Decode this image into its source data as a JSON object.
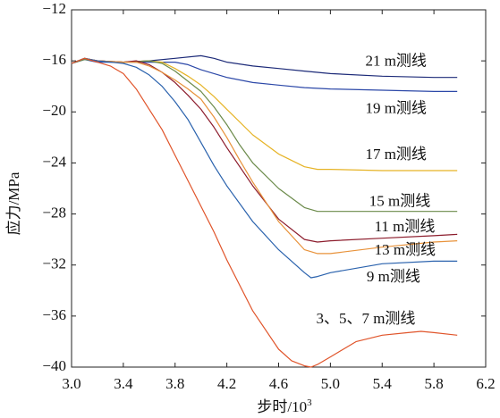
{
  "chart_data": {
    "type": "line",
    "title": "",
    "xlabel": "步时/10",
    "xlabel_sup": "3",
    "ylabel": "应力/MPa",
    "xlim": [
      3.0,
      6.2
    ],
    "ylim": [
      -40,
      -12
    ],
    "xticks": [
      3.0,
      3.4,
      3.8,
      4.2,
      4.6,
      5.0,
      5.4,
      5.8,
      6.2
    ],
    "xtick_labels": [
      "3.0",
      "3.4",
      "3.8",
      "4.2",
      "4.6",
      "5.0",
      "5.4",
      "5.8",
      "6.2"
    ],
    "yticks": [
      -12,
      -16,
      -20,
      -24,
      -28,
      -32,
      -36,
      -40
    ],
    "ytick_labels": [
      "−12",
      "−16",
      "−20",
      "−24",
      "−28",
      "−32",
      "−36",
      "−40"
    ],
    "grid": false,
    "series": [
      {
        "name": "21 m测线",
        "color": "#1c2a78",
        "x": [
          3.0,
          3.1,
          3.2,
          3.4,
          3.6,
          3.8,
          4.0,
          4.1,
          4.2,
          4.4,
          4.6,
          4.8,
          5.0,
          5.4,
          5.8,
          5.98
        ],
        "y": [
          -16.2,
          -15.8,
          -16.0,
          -16.1,
          -16.0,
          -15.8,
          -15.6,
          -15.8,
          -16.1,
          -16.4,
          -16.6,
          -16.8,
          -17.0,
          -17.2,
          -17.3,
          -17.3
        ]
      },
      {
        "name": "19 m测线",
        "color": "#2c48a8",
        "x": [
          3.0,
          3.1,
          3.2,
          3.4,
          3.6,
          3.8,
          3.9,
          4.0,
          4.2,
          4.4,
          4.6,
          4.8,
          5.0,
          5.4,
          5.8,
          5.98
        ],
        "y": [
          -16.2,
          -15.9,
          -16.1,
          -16.1,
          -16.1,
          -16.1,
          -16.3,
          -16.7,
          -17.3,
          -17.7,
          -17.9,
          -18.1,
          -18.2,
          -18.3,
          -18.4,
          -18.4
        ]
      },
      {
        "name": "17 m测线",
        "color": "#e6b325",
        "x": [
          3.0,
          3.1,
          3.2,
          3.4,
          3.6,
          3.7,
          3.8,
          3.9,
          4.0,
          4.1,
          4.2,
          4.4,
          4.6,
          4.8,
          4.9,
          5.0,
          5.4,
          5.8,
          5.98
        ],
        "y": [
          -16.2,
          -15.8,
          -16.0,
          -16.1,
          -16.0,
          -16.1,
          -16.6,
          -17.2,
          -17.9,
          -18.8,
          -19.8,
          -21.8,
          -23.3,
          -24.3,
          -24.5,
          -24.5,
          -24.6,
          -24.6,
          -24.6
        ]
      },
      {
        "name": "15 m测线",
        "color": "#6b8a4a",
        "x": [
          3.0,
          3.1,
          3.2,
          3.4,
          3.6,
          3.7,
          3.8,
          3.9,
          4.0,
          4.1,
          4.2,
          4.3,
          4.4,
          4.6,
          4.8,
          4.9,
          5.0,
          5.4,
          5.8,
          5.98
        ],
        "y": [
          -16.2,
          -15.9,
          -16.0,
          -16.1,
          -16.0,
          -16.2,
          -16.8,
          -17.6,
          -18.4,
          -19.6,
          -21.0,
          -22.6,
          -24.0,
          -26.0,
          -27.5,
          -27.8,
          -27.8,
          -27.8,
          -27.8,
          -27.8
        ]
      },
      {
        "name": "11 m测线",
        "color": "#8c1c2c",
        "x": [
          3.0,
          3.1,
          3.2,
          3.4,
          3.5,
          3.6,
          3.7,
          3.8,
          3.9,
          4.0,
          4.1,
          4.2,
          4.4,
          4.6,
          4.8,
          4.9,
          5.0,
          5.4,
          5.8,
          5.98
        ],
        "y": [
          -16.2,
          -15.8,
          -16.0,
          -16.1,
          -16.0,
          -16.3,
          -16.9,
          -17.7,
          -18.7,
          -19.8,
          -21.2,
          -22.8,
          -25.8,
          -28.4,
          -30.0,
          -30.2,
          -30.1,
          -29.9,
          -29.7,
          -29.6
        ]
      },
      {
        "name": "13 m测线",
        "color": "#e8923a",
        "x": [
          3.0,
          3.1,
          3.2,
          3.4,
          3.5,
          3.6,
          3.7,
          3.8,
          3.9,
          4.0,
          4.1,
          4.2,
          4.3,
          4.4,
          4.6,
          4.8,
          4.9,
          5.0,
          5.4,
          5.8,
          5.98
        ],
        "y": [
          -16.2,
          -15.8,
          -16.0,
          -16.1,
          -16.1,
          -16.4,
          -16.9,
          -17.5,
          -18.2,
          -19.0,
          -20.4,
          -22.0,
          -23.8,
          -25.5,
          -28.6,
          -30.8,
          -31.1,
          -31.1,
          -30.6,
          -30.2,
          -30.1
        ]
      },
      {
        "name": "9 m测线",
        "color": "#2a62ad",
        "x": [
          3.0,
          3.1,
          3.2,
          3.4,
          3.5,
          3.6,
          3.7,
          3.8,
          3.9,
          4.0,
          4.1,
          4.2,
          4.4,
          4.6,
          4.8,
          4.85,
          4.9,
          5.0,
          5.4,
          5.8,
          5.98
        ],
        "y": [
          -16.2,
          -15.8,
          -16.0,
          -16.2,
          -16.5,
          -17.1,
          -18.0,
          -19.2,
          -20.6,
          -22.4,
          -24.2,
          -25.8,
          -28.6,
          -30.8,
          -32.6,
          -33.0,
          -32.9,
          -32.6,
          -31.9,
          -31.7,
          -31.7
        ]
      },
      {
        "name": "3、5、7 m测线",
        "color": "#e0542a",
        "x": [
          3.0,
          3.1,
          3.2,
          3.3,
          3.4,
          3.5,
          3.6,
          3.7,
          3.8,
          3.9,
          4.0,
          4.1,
          4.2,
          4.4,
          4.6,
          4.7,
          4.8,
          4.85,
          4.9,
          5.0,
          5.2,
          5.4,
          5.6,
          5.7,
          5.8,
          5.98
        ],
        "y": [
          -16.2,
          -15.8,
          -16.1,
          -16.4,
          -17.0,
          -18.2,
          -19.8,
          -21.4,
          -23.4,
          -25.4,
          -27.4,
          -29.4,
          -31.6,
          -35.6,
          -38.6,
          -39.5,
          -39.9,
          -40.0,
          -39.8,
          -39.2,
          -38.0,
          -37.5,
          -37.3,
          -37.2,
          -37.3,
          -37.5
        ]
      }
    ],
    "labels": [
      {
        "text": "21 m测线",
        "x": 5.27,
        "y": -16.1
      },
      {
        "text": "19 m测线",
        "x": 5.27,
        "y": -19.8
      },
      {
        "text": "17 m测线",
        "x": 5.27,
        "y": -23.4
      },
      {
        "text": "15 m测线",
        "x": 5.3,
        "y": -27.1
      },
      {
        "text": "11 m测线",
        "x": 5.34,
        "y": -29.1
      },
      {
        "text": "13 m测线",
        "x": 5.34,
        "y": -30.9
      },
      {
        "text": "9 m测线",
        "x": 5.28,
        "y": -33.0
      },
      {
        "text": "3、5、7 m测线",
        "x": 4.89,
        "y": -36.3
      }
    ]
  }
}
